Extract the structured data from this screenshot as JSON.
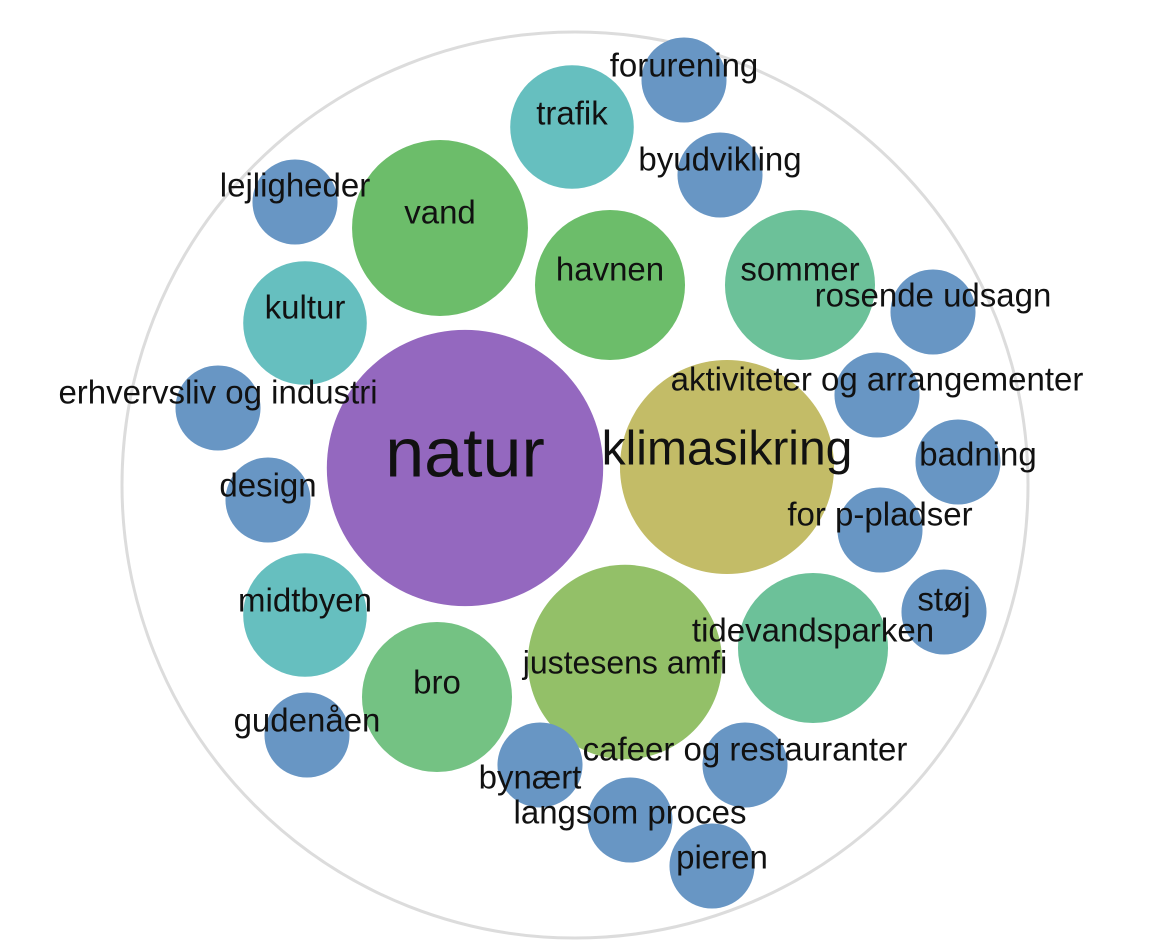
{
  "chart_data": {
    "type": "packed-bubble",
    "categories": [
      "natur",
      "klimasikring",
      "justesens amfi",
      "vand",
      "havnen",
      "sommer",
      "tidevandsparken",
      "bro",
      "trafik",
      "kultur",
      "midtbyen",
      "forurening",
      "byudvikling",
      "lejligheder",
      "rosende udsagn",
      "aktiviteter og arrangementer",
      "erhvervsliv og industri",
      "badning",
      "design",
      "for p-pladser",
      "støj",
      "gudenåen",
      "cafeer og restauranter",
      "bynært",
      "langsom proces",
      "pieren"
    ],
    "values": [
      19,
      11.4,
      9.4,
      7.7,
      5.6,
      5.6,
      5.6,
      5.6,
      3.8,
      3.8,
      3.8,
      1.8,
      1.8,
      1.8,
      1.8,
      1.8,
      1.8,
      1.8,
      1.8,
      1.8,
      1.8,
      1.8,
      1.8,
      1.8,
      1.8,
      1.8
    ],
    "colors": [
      "#9468bf",
      "#c3bc67",
      "#93c068",
      "#6cbd6a",
      "#6cbd6a",
      "#6cc199",
      "#6cc199",
      "#74c283",
      "#66bfbf",
      "#66bfbf",
      "#66bfbf",
      "#6896c4",
      "#6896c4",
      "#6896c4",
      "#6896c4",
      "#6896c4",
      "#6896c4",
      "#6896c4",
      "#6896c4",
      "#6896c4",
      "#6896c4",
      "#6896c4",
      "#6896c4",
      "#6896c4",
      "#6896c4",
      "#6896c4"
    ]
  }
}
